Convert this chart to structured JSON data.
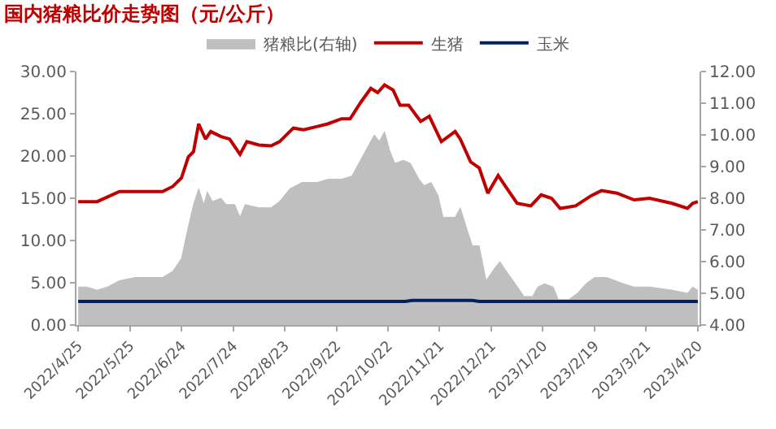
{
  "chart_data": {
    "type": "line",
    "title": "国内猪粮比价走势图（元/公斤）",
    "series": [
      {
        "name": "猪粮比(右轴)",
        "type": "area",
        "axis": "y2",
        "color": "#bfbfbf",
        "x": [
          "2022-04-25",
          "2022-04-30",
          "2022-05-06",
          "2022-05-12",
          "2022-05-19",
          "2022-05-28",
          "2022-06-13",
          "2022-06-19",
          "2022-06-24",
          "2022-06-28",
          "2022-07-01",
          "2022-07-04",
          "2022-07-07",
          "2022-07-09",
          "2022-07-12",
          "2022-07-17",
          "2022-07-20",
          "2022-07-25",
          "2022-07-28",
          "2022-07-31",
          "2022-08-08",
          "2022-08-15",
          "2022-08-20",
          "2022-08-26",
          "2022-09-02",
          "2022-09-11",
          "2022-09-17",
          "2022-09-25",
          "2022-10-01",
          "2022-10-06",
          "2022-10-11",
          "2022-10-14",
          "2022-10-17",
          "2022-10-20",
          "2022-10-23",
          "2022-10-26",
          "2022-10-31",
          "2022-11-04",
          "2022-11-09",
          "2022-11-12",
          "2022-11-16",
          "2022-11-20",
          "2022-11-23",
          "2022-11-30",
          "2022-12-03",
          "2022-12-07",
          "2022-12-10",
          "2022-12-14",
          "2022-12-18",
          "2022-12-23",
          "2022-12-26",
          "2022-12-31",
          "2023-01-04",
          "2023-01-09",
          "2023-01-14",
          "2023-01-17",
          "2023-01-21",
          "2023-01-26",
          "2023-01-29",
          "2023-02-04",
          "2023-02-09",
          "2023-02-14",
          "2023-02-19",
          "2023-02-26",
          "2023-03-08",
          "2023-03-14",
          "2023-03-23",
          "2023-04-05",
          "2023-04-14",
          "2023-04-17",
          "2023-04-20"
        ],
        "values": [
          5.2,
          5.2,
          5.1,
          5.2,
          5.4,
          5.5,
          5.5,
          5.7,
          6.1,
          7.1,
          7.8,
          8.3,
          7.8,
          8.2,
          7.9,
          8.0,
          7.8,
          7.8,
          7.4,
          7.8,
          7.7,
          7.7,
          7.9,
          8.3,
          8.5,
          8.5,
          8.6,
          8.6,
          8.7,
          9.2,
          9.7,
          10.0,
          9.8,
          10.1,
          9.5,
          9.1,
          9.2,
          9.1,
          8.6,
          8.4,
          8.5,
          8.1,
          7.4,
          7.4,
          7.7,
          7.0,
          6.5,
          6.5,
          5.4,
          5.8,
          6.0,
          5.6,
          5.3,
          4.9,
          4.9,
          5.2,
          5.3,
          5.2,
          4.8,
          4.8,
          5.0,
          5.3,
          5.5,
          5.5,
          5.3,
          5.2,
          5.2,
          5.1,
          5.0,
          5.2,
          5.1
        ]
      },
      {
        "name": "生猪",
        "color": "#c00000",
        "x": [
          "2022-04-25",
          "2022-05-06",
          "2022-05-19",
          "2022-06-13",
          "2022-06-19",
          "2022-06-24",
          "2022-06-28",
          "2022-07-01",
          "2022-07-04",
          "2022-07-08",
          "2022-07-11",
          "2022-07-17",
          "2022-07-22",
          "2022-07-28",
          "2022-08-01",
          "2022-08-08",
          "2022-08-15",
          "2022-08-20",
          "2022-08-28",
          "2022-09-03",
          "2022-09-11",
          "2022-09-17",
          "2022-09-25",
          "2022-09-30",
          "2022-10-06",
          "2022-10-12",
          "2022-10-16",
          "2022-10-20",
          "2022-10-25",
          "2022-10-29",
          "2022-11-03",
          "2022-11-10",
          "2022-11-15",
          "2022-11-22",
          "2022-11-30",
          "2022-12-03",
          "2022-12-09",
          "2022-12-14",
          "2022-12-19",
          "2022-12-25",
          "2022-12-30",
          "2023-01-05",
          "2023-01-13",
          "2023-01-19",
          "2023-01-25",
          "2023-01-30",
          "2023-02-08",
          "2023-02-17",
          "2023-02-23",
          "2023-03-04",
          "2023-03-14",
          "2023-03-23",
          "2023-04-05",
          "2023-04-14",
          "2023-04-17",
          "2023-04-20"
        ],
        "values": [
          14.6,
          14.6,
          15.8,
          15.8,
          16.4,
          17.4,
          19.9,
          20.5,
          23.8,
          22.0,
          22.9,
          22.3,
          22.0,
          20.2,
          21.7,
          21.3,
          21.2,
          21.7,
          23.3,
          23.1,
          23.5,
          23.8,
          24.4,
          24.4,
          26.3,
          28.0,
          27.5,
          28.4,
          27.8,
          26.0,
          26.0,
          24.1,
          24.7,
          21.7,
          22.9,
          22.0,
          19.3,
          18.6,
          15.6,
          17.7,
          16.2,
          14.4,
          14.1,
          15.4,
          15.0,
          13.8,
          14.1,
          15.3,
          15.9,
          15.6,
          14.8,
          15.0,
          14.4,
          13.8,
          14.4,
          14.6
        ]
      },
      {
        "name": "玉米",
        "color": "#002060",
        "x": [
          "2022-04-25",
          "2022-11-01",
          "2022-11-05",
          "2022-12-10",
          "2022-12-14",
          "2023-04-20"
        ],
        "values": [
          2.8,
          2.8,
          2.9,
          2.9,
          2.8,
          2.8
        ]
      }
    ],
    "xlim": [
      "2022-04-24",
      "2023-04-21"
    ],
    "xticks": [
      {
        "value": "2022-04-25",
        "label": "2022/4/25"
      },
      {
        "value": "2022-05-25",
        "label": "2022/5/25"
      },
      {
        "value": "2022-06-24",
        "label": "2022/6/24"
      },
      {
        "value": "2022-07-24",
        "label": "2022/7/24"
      },
      {
        "value": "2022-08-23",
        "label": "2022/8/23"
      },
      {
        "value": "2022-09-22",
        "label": "2022/9/22"
      },
      {
        "value": "2022-10-22",
        "label": "2022/10/22"
      },
      {
        "value": "2022-11-21",
        "label": "2022/11/21"
      },
      {
        "value": "2022-12-21",
        "label": "2022/12/21"
      },
      {
        "value": "2023-01-20",
        "label": "2023/1/20"
      },
      {
        "value": "2023-02-19",
        "label": "2023/2/19"
      },
      {
        "value": "2023-03-21",
        "label": "2023/3/21"
      },
      {
        "value": "2023-04-20",
        "label": "2023/4/20"
      }
    ],
    "ylim": [
      0,
      30
    ],
    "yticks": [
      {
        "value": 0,
        "label": "0.00"
      },
      {
        "value": 5,
        "label": "5.00"
      },
      {
        "value": 10,
        "label": "10.00"
      },
      {
        "value": 15,
        "label": "15.00"
      },
      {
        "value": 20,
        "label": "20.00"
      },
      {
        "value": 25,
        "label": "25.00"
      },
      {
        "value": 30,
        "label": "30.00"
      }
    ],
    "y2lim": [
      4,
      12
    ],
    "y2ticks": [
      {
        "value": 4,
        "label": "4.00"
      },
      {
        "value": 5,
        "label": "5.00"
      },
      {
        "value": 6,
        "label": "6.00"
      },
      {
        "value": 7,
        "label": "7.00"
      },
      {
        "value": 8,
        "label": "8.00"
      },
      {
        "value": 9,
        "label": "9.00"
      },
      {
        "value": 10,
        "label": "10.00"
      },
      {
        "value": 11,
        "label": "11.00"
      },
      {
        "value": 12,
        "label": "12.00"
      }
    ],
    "grid": false,
    "legend": "top",
    "line_style": "solid"
  }
}
